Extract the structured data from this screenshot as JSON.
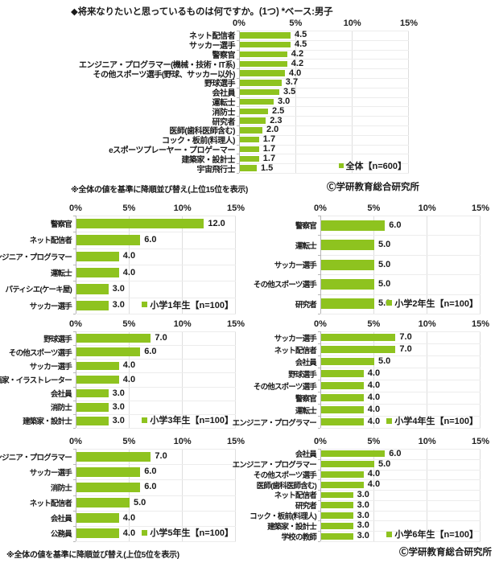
{
  "page": {
    "title": "◆将来なりたいと思っているものは何ですか。(1つ)  *ベース:男子",
    "note_top15": "※全体の値を基準に降順並び替え(上位15位を表示)",
    "note_top5": "※全体の値を基準に降順並び替え(上位5位を表示)",
    "copyright": "Ⓒ学研教育総合研究所",
    "bar_color": "#8ec31f"
  },
  "chart_data": [
    {
      "id": "overall",
      "type": "bar",
      "orientation": "horizontal",
      "legend": "全体【n=600】",
      "legend_position": "bottom-right",
      "xlim": [
        0,
        15
      ],
      "xticks": [
        "0%",
        "5%",
        "10%",
        "15%"
      ],
      "grid": true,
      "categories": [
        "ネット配信者",
        "サッカー選手",
        "警察官",
        "エンジニア・プログラマー(機械・技術・IT系)",
        "その他スポーツ選手(野球、サッカー以外)",
        "野球選手",
        "会社員",
        "運転士",
        "消防士",
        "研究者",
        "医師(歯科医師含む)",
        "コック・板前(料理人)",
        "eスポーツプレーヤー・プロゲーマー",
        "建築家・設計士",
        "宇宙飛行士"
      ],
      "values": [
        4.5,
        4.5,
        4.2,
        4.2,
        4.0,
        3.7,
        3.5,
        3.0,
        2.5,
        2.3,
        2.0,
        1.7,
        1.7,
        1.7,
        1.5
      ]
    },
    {
      "id": "grade1",
      "type": "bar",
      "orientation": "horizontal",
      "legend": "小学1年生【n=100】",
      "legend_position": "bottom-right",
      "xlim": [
        0,
        15
      ],
      "xticks": [
        "0%",
        "5%",
        "10%",
        "15%"
      ],
      "grid": true,
      "categories": [
        "警察官",
        "ネット配信者",
        "エンジニア・プログラマー",
        "運転士",
        "パティシエ(ケーキ屋)",
        "サッカー選手"
      ],
      "values": [
        12.0,
        6.0,
        4.0,
        4.0,
        3.0,
        3.0
      ]
    },
    {
      "id": "grade2",
      "type": "bar",
      "orientation": "horizontal",
      "legend": "小学2年生【n=100】",
      "legend_position": "bottom-right",
      "xlim": [
        0,
        15
      ],
      "xticks": [
        "0%",
        "5%",
        "10%",
        "15%"
      ],
      "grid": true,
      "categories": [
        "警察官",
        "運転士",
        "サッカー選手",
        "その他スポーツ選手",
        "研究者"
      ],
      "values": [
        6.0,
        5.0,
        5.0,
        5.0,
        5.0
      ]
    },
    {
      "id": "grade3",
      "type": "bar",
      "orientation": "horizontal",
      "legend": "小学3年生【n=100】",
      "legend_position": "bottom-right",
      "xlim": [
        0,
        15
      ],
      "xticks": [
        "0%",
        "5%",
        "10%",
        "15%"
      ],
      "grid": true,
      "categories": [
        "野球選手",
        "その他スポーツ選手",
        "サッカー選手",
        "漫画家・イラストレーター",
        "会社員",
        "消防士",
        "建築家・設計士"
      ],
      "values": [
        7.0,
        6.0,
        4.0,
        4.0,
        3.0,
        3.0,
        3.0
      ]
    },
    {
      "id": "grade4",
      "type": "bar",
      "orientation": "horizontal",
      "legend": "小学4年生【n=100】",
      "legend_position": "bottom-right",
      "xlim": [
        0,
        15
      ],
      "xticks": [
        "0%",
        "5%",
        "10%",
        "15%"
      ],
      "grid": true,
      "categories": [
        "サッカー選手",
        "ネット配信者",
        "会社員",
        "野球選手",
        "その他スポーツ選手",
        "警察官",
        "運転士",
        "エンジニア・プログラマー"
      ],
      "values": [
        7.0,
        7.0,
        5.0,
        4.0,
        4.0,
        4.0,
        4.0,
        4.0
      ]
    },
    {
      "id": "grade5",
      "type": "bar",
      "orientation": "horizontal",
      "legend": "小学5年生【n=100】",
      "legend_position": "bottom-right",
      "xlim": [
        0,
        15
      ],
      "xticks": [
        "0%",
        "5%",
        "10%",
        "15%"
      ],
      "grid": true,
      "categories": [
        "エンジニア・プログラマー",
        "サッカー選手",
        "消防士",
        "ネット配信者",
        "会社員",
        "公務員"
      ],
      "values": [
        7.0,
        6.0,
        6.0,
        5.0,
        4.0,
        4.0
      ]
    },
    {
      "id": "grade6",
      "type": "bar",
      "orientation": "horizontal",
      "legend": "小学6年生【n=100】",
      "legend_position": "bottom-right",
      "xlim": [
        0,
        15
      ],
      "xticks": [
        "0%",
        "5%",
        "10%",
        "15%"
      ],
      "grid": true,
      "categories": [
        "会社員",
        "エンジニア・プログラマー",
        "その他スポーツ選手",
        "医師(歯科医師含む)",
        "ネット配信者",
        "研究者",
        "コック・板前(料理人)",
        "建築家・設計士",
        "学校の教師"
      ],
      "values": [
        6.0,
        5.0,
        4.0,
        4.0,
        3.0,
        3.0,
        3.0,
        3.0,
        3.0
      ]
    }
  ]
}
